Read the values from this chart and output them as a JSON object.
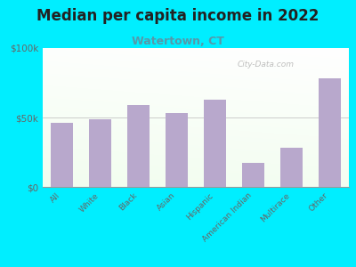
{
  "title": "Median per capita income in 2022",
  "subtitle": "Watertown, CT",
  "categories": [
    "All",
    "White",
    "Black",
    "Asian",
    "Hispanic",
    "American Indian",
    "Multirace",
    "Other"
  ],
  "values": [
    46000,
    49000,
    59000,
    53000,
    63000,
    17000,
    28000,
    78000
  ],
  "bar_color": "#b8a8cc",
  "title_fontsize": 12,
  "subtitle_fontsize": 9,
  "subtitle_color": "#5599aa",
  "title_color": "#222222",
  "bg_color": "#00eeff",
  "tick_label_color": "#666666",
  "ylim": [
    0,
    100000
  ],
  "yticks": [
    0,
    50000,
    100000
  ],
  "ytick_labels": [
    "$0",
    "$50k",
    "$100k"
  ],
  "watermark": "City-Data.com"
}
